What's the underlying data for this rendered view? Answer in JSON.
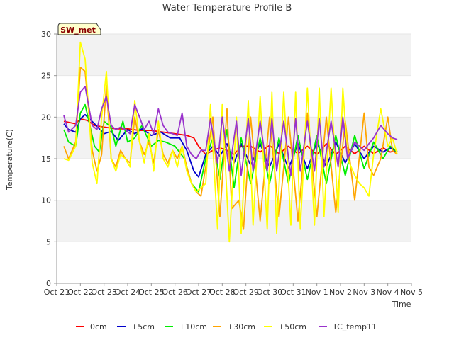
{
  "chart_data": {
    "type": "line",
    "title": "Water Temperature Profile B",
    "xlabel": "Time",
    "ylabel": "Temperature(C)",
    "ylim": [
      0,
      30
    ],
    "yticks": [
      0,
      5,
      10,
      15,
      20,
      25,
      30
    ],
    "xlim": [
      0,
      15
    ],
    "xticks": [
      "Oct 21",
      "Oct 22",
      "Oct 23",
      "Oct 24",
      "Oct 25",
      "Oct 26",
      "Oct 27",
      "Oct 28",
      "Oct 29",
      "Oct 30",
      "Oct 31",
      "Nov 1",
      "Nov 2",
      "Nov 3",
      "Nov 4",
      "Nov 5"
    ],
    "grid": "horizontal bands",
    "legend_position": "bottom",
    "badge": "SW_met",
    "series": [
      {
        "name": "0cm",
        "color": "#ff0000",
        "x": [
          0.3,
          0.8,
          1.0,
          1.3,
          1.6,
          2.0,
          2.5,
          3.0,
          3.5,
          4.0,
          4.5,
          5.0,
          5.5,
          5.8,
          6.0,
          6.3,
          6.6,
          6.9,
          7.2,
          7.5,
          7.8,
          8.2,
          8.6,
          9.0,
          9.4,
          9.8,
          10.2,
          10.6,
          11.0,
          11.4,
          11.8,
          12.2,
          12.6,
          13.0,
          13.4,
          13.8,
          14.1,
          14.4
        ],
        "values": [
          19.5,
          19.2,
          19.8,
          19.6,
          19.0,
          18.8,
          18.6,
          18.6,
          18.4,
          18.4,
          18.2,
          18.0,
          17.8,
          17.5,
          16.5,
          15.5,
          16.0,
          16.3,
          16.0,
          15.5,
          16.5,
          16.5,
          15.8,
          16.6,
          15.6,
          16.5,
          15.6,
          16.5,
          15.5,
          16.8,
          15.5,
          16.5,
          15.6,
          16.5,
          15.6,
          16.3,
          15.8,
          16.0
        ]
      },
      {
        "name": "+5cm",
        "color": "#0000cc",
        "x": [
          0.3,
          0.5,
          0.8,
          1.0,
          1.2,
          1.6,
          2.0,
          2.3,
          2.6,
          3.0,
          3.3,
          3.6,
          4.0,
          4.4,
          4.8,
          5.2,
          5.5,
          5.8,
          6.0,
          6.3,
          6.6,
          6.9,
          7.2,
          7.5,
          7.8,
          8.2,
          8.6,
          9.0,
          9.4,
          9.8,
          10.2,
          10.6,
          11.0,
          11.4,
          11.8,
          12.2,
          12.6,
          13.0,
          13.4,
          13.8,
          14.1,
          14.4
        ],
        "values": [
          19.2,
          18.5,
          18.2,
          19.8,
          20.3,
          19.2,
          18.0,
          18.3,
          17.2,
          18.5,
          18.0,
          18.6,
          17.8,
          18.2,
          17.5,
          17.5,
          16.0,
          13.5,
          12.8,
          15.5,
          16.5,
          15.3,
          16.8,
          14.5,
          16.8,
          14.2,
          16.8,
          14.0,
          16.8,
          13.8,
          16.8,
          13.8,
          17.0,
          14.0,
          17.0,
          14.5,
          16.8,
          15.0,
          16.5,
          15.8,
          16.3,
          15.8
        ]
      },
      {
        "name": "+10cm",
        "color": "#00ee00",
        "x": [
          0.3,
          0.5,
          0.8,
          1.0,
          1.2,
          1.6,
          1.8,
          2.0,
          2.3,
          2.5,
          2.8,
          3.0,
          3.3,
          3.6,
          4.0,
          4.3,
          4.6,
          5.0,
          5.4,
          5.7,
          6.0,
          6.3,
          6.6,
          6.9,
          7.2,
          7.5,
          7.8,
          8.2,
          8.6,
          9.0,
          9.4,
          9.8,
          10.2,
          10.6,
          11.0,
          11.4,
          11.8,
          12.2,
          12.6,
          13.0,
          13.4,
          13.8,
          14.1,
          14.4
        ],
        "values": [
          18.5,
          17.0,
          16.5,
          20.5,
          21.5,
          16.5,
          15.8,
          19.5,
          18.8,
          16.5,
          19.5,
          17.0,
          17.5,
          19.0,
          16.5,
          17.2,
          17.0,
          16.5,
          15.0,
          12.0,
          11.0,
          15.0,
          17.5,
          12.5,
          18.5,
          11.5,
          17.5,
          12.0,
          17.5,
          12.0,
          17.5,
          12.0,
          17.8,
          12.5,
          17.8,
          12.0,
          17.8,
          13.0,
          17.8,
          13.8,
          17.0,
          15.0,
          16.5,
          15.8
        ]
      },
      {
        "name": "+30cm",
        "color": "#ffa500",
        "x": [
          0.3,
          0.5,
          0.8,
          1.0,
          1.2,
          1.5,
          1.7,
          1.9,
          2.1,
          2.3,
          2.5,
          2.7,
          2.9,
          3.1,
          3.3,
          3.5,
          3.7,
          3.9,
          4.1,
          4.3,
          4.5,
          4.7,
          4.9,
          5.1,
          5.3,
          5.5,
          5.7,
          5.9,
          6.1,
          6.3,
          6.6,
          6.9,
          7.2,
          7.4,
          7.7,
          7.9,
          8.2,
          8.6,
          9.0,
          9.4,
          9.8,
          10.2,
          10.6,
          11.0,
          11.4,
          11.8,
          12.2,
          12.6,
          13.0,
          13.2,
          13.4,
          13.7,
          14.0,
          14.2,
          14.4
        ],
        "values": [
          16.5,
          15.0,
          17.0,
          26.0,
          25.5,
          16.0,
          13.5,
          15.5,
          23.8,
          15.0,
          14.0,
          16.0,
          15.0,
          14.5,
          20.0,
          17.0,
          15.5,
          17.0,
          14.5,
          18.5,
          15.5,
          14.5,
          16.0,
          15.0,
          16.5,
          14.0,
          12.0,
          11.0,
          10.5,
          14.0,
          20.0,
          8.0,
          21.0,
          9.0,
          10.0,
          6.5,
          20.0,
          7.5,
          20.0,
          8.0,
          20.0,
          7.5,
          20.5,
          8.0,
          20.0,
          8.5,
          19.5,
          10.0,
          20.5,
          14.0,
          13.0,
          15.0,
          20.0,
          16.0,
          15.5
        ]
      },
      {
        "name": "+50cm",
        "color": "#ffff00",
        "x": [
          0.3,
          0.5,
          0.8,
          1.0,
          1.2,
          1.5,
          1.7,
          1.9,
          2.1,
          2.3,
          2.5,
          2.7,
          2.9,
          3.1,
          3.3,
          3.5,
          3.7,
          3.9,
          4.1,
          4.3,
          4.5,
          4.7,
          4.9,
          5.1,
          5.3,
          5.5,
          5.7,
          5.9,
          6.1,
          6.3,
          6.5,
          6.8,
          7.0,
          7.3,
          7.6,
          7.8,
          8.1,
          8.3,
          8.6,
          8.9,
          9.1,
          9.3,
          9.6,
          9.9,
          10.1,
          10.3,
          10.6,
          10.9,
          11.1,
          11.3,
          11.6,
          11.9,
          12.1,
          12.3,
          12.6,
          12.8,
          13.0,
          13.2,
          13.4,
          13.7,
          14.0,
          14.2,
          14.4
        ],
        "values": [
          15.0,
          14.8,
          16.5,
          29.0,
          27.0,
          14.5,
          12.0,
          20.0,
          25.5,
          15.0,
          13.5,
          15.5,
          15.0,
          14.0,
          22.0,
          17.0,
          14.5,
          18.0,
          13.5,
          19.5,
          15.0,
          14.0,
          16.0,
          14.0,
          16.5,
          13.5,
          12.0,
          11.0,
          11.5,
          12.0,
          21.5,
          6.5,
          21.5,
          5.0,
          20.0,
          6.0,
          22.0,
          7.0,
          22.5,
          6.5,
          23.0,
          6.0,
          23.0,
          7.0,
          23.0,
          6.5,
          23.5,
          7.0,
          23.5,
          8.0,
          23.5,
          8.5,
          23.5,
          15.0,
          13.0,
          12.0,
          11.5,
          10.5,
          15.5,
          21.0,
          16.5,
          17.5,
          15.5
        ]
      },
      {
        "name": "TC_temp11",
        "color": "#9932cc",
        "x": [
          0.3,
          0.5,
          0.8,
          1.0,
          1.2,
          1.5,
          1.7,
          1.9,
          2.1,
          2.3,
          2.5,
          2.7,
          2.9,
          3.1,
          3.3,
          3.5,
          3.7,
          3.9,
          4.1,
          4.3,
          4.5,
          4.7,
          4.9,
          5.1,
          5.3,
          5.5,
          5.7,
          5.9,
          6.1,
          6.3,
          6.5,
          6.8,
          7.0,
          7.3,
          7.6,
          7.8,
          8.1,
          8.3,
          8.6,
          8.9,
          9.1,
          9.3,
          9.6,
          9.9,
          10.1,
          10.3,
          10.6,
          10.9,
          11.1,
          11.3,
          11.6,
          11.9,
          12.1,
          12.3,
          12.6,
          12.8,
          13.0,
          13.2,
          13.4,
          13.7,
          14.0,
          14.2,
          14.4
        ],
        "values": [
          20.2,
          18.2,
          19.0,
          23.0,
          23.7,
          19.0,
          18.5,
          21.0,
          22.5,
          19.0,
          18.5,
          18.8,
          18.5,
          18.0,
          21.5,
          20.0,
          18.5,
          19.5,
          18.0,
          21.0,
          19.0,
          18.2,
          18.0,
          17.8,
          20.5,
          16.5,
          15.5,
          15.0,
          16.0,
          16.0,
          19.8,
          14.5,
          20.0,
          13.5,
          19.5,
          13.0,
          19.8,
          13.5,
          19.5,
          13.5,
          19.8,
          13.5,
          19.5,
          13.0,
          19.8,
          13.5,
          19.5,
          13.5,
          19.8,
          14.0,
          19.5,
          14.0,
          20.0,
          15.0,
          17.0,
          16.5,
          16.0,
          16.8,
          17.5,
          19.0,
          18.0,
          17.5,
          17.3
        ]
      }
    ]
  }
}
